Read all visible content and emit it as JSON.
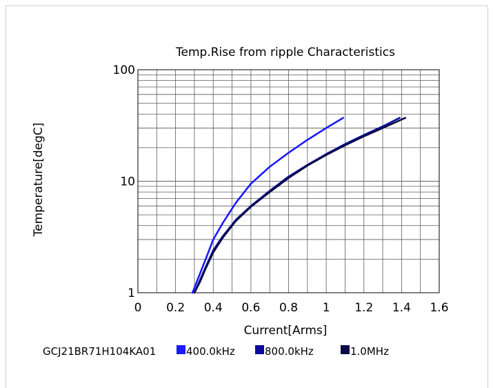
{
  "chart_data": {
    "type": "line",
    "title": "Temp.Rise from ripple Characteristics",
    "xlabel": "Current[Arms]",
    "ylabel": "Temperature[degC]",
    "xlim": [
      0,
      1.6
    ],
    "ylim": [
      1,
      100
    ],
    "y_scale": "log",
    "x_ticks": [
      "0",
      "0.2",
      "0.4",
      "0.6",
      "0.8",
      "1",
      "1.2",
      "1.4",
      "1.6"
    ],
    "y_ticks": [
      "1",
      "10",
      "100"
    ],
    "grid": true,
    "legend_position": "bottom",
    "part_number": "GCJ21BR71H104KA01",
    "series": [
      {
        "name": "400.0kHz",
        "color": "#1a1aff",
        "x": [
          0.29,
          0.32,
          0.36,
          0.4,
          0.45,
          0.52,
          0.6,
          0.7,
          0.8,
          0.9,
          1.0,
          1.09
        ],
        "y": [
          1.0,
          1.35,
          2.0,
          3.0,
          4.2,
          6.4,
          9.5,
          13.5,
          18.0,
          23.5,
          30.0,
          37.0
        ]
      },
      {
        "name": "800.0kHz",
        "color": "#0a0a9e",
        "x": [
          0.3,
          0.33,
          0.36,
          0.4,
          0.45,
          0.52,
          0.6,
          0.7,
          0.8,
          0.9,
          1.0,
          1.1,
          1.2,
          1.3,
          1.39
        ],
        "y": [
          1.0,
          1.3,
          1.7,
          2.4,
          3.2,
          4.5,
          6.0,
          8.2,
          11.0,
          14.0,
          17.5,
          21.5,
          26.0,
          31.0,
          37.0
        ]
      },
      {
        "name": "1.0MHz",
        "color": "#0b0b45",
        "x": [
          0.3,
          0.33,
          0.36,
          0.4,
          0.45,
          0.52,
          0.6,
          0.7,
          0.8,
          0.9,
          1.0,
          1.1,
          1.2,
          1.3,
          1.42
        ],
        "y": [
          1.0,
          1.25,
          1.65,
          2.3,
          3.1,
          4.4,
          5.9,
          8.0,
          10.7,
          13.8,
          17.2,
          21.0,
          25.3,
          30.0,
          37.0
        ]
      }
    ]
  }
}
